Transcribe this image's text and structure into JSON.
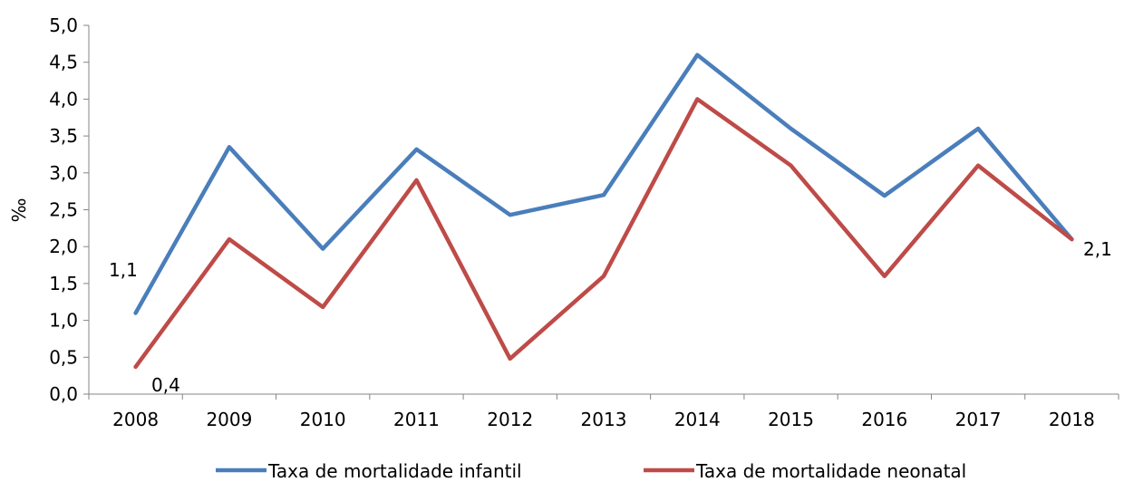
{
  "chart_data": {
    "type": "line",
    "title": "",
    "xlabel": "",
    "ylabel": "‰",
    "ylim": [
      0,
      5
    ],
    "ytick_labels": [
      "0,0",
      "0,5",
      "1,0",
      "1,5",
      "2,0",
      "2,5",
      "3,0",
      "3,5",
      "4,0",
      "4,5",
      "5,0"
    ],
    "categories": [
      "2008",
      "2009",
      "2010",
      "2011",
      "2012",
      "2013",
      "2014",
      "2015",
      "2016",
      "2017",
      "2018"
    ],
    "series": [
      {
        "name": "Taxa de mortalidade infantil",
        "color": "#4a7ebb",
        "values": [
          1.1,
          3.35,
          1.97,
          3.32,
          2.43,
          2.7,
          4.6,
          3.6,
          2.69,
          3.6,
          2.1
        ]
      },
      {
        "name": "Taxa de mortalidade neonatal",
        "color": "#be4b48",
        "values": [
          0.37,
          2.1,
          1.18,
          2.9,
          0.48,
          1.6,
          4.0,
          3.1,
          1.6,
          3.1,
          2.1
        ]
      }
    ],
    "annotations": [
      {
        "text": "1,1"
      },
      {
        "text": "0,4"
      },
      {
        "text": "2,1"
      }
    ],
    "legend_position": "bottom",
    "grid": false
  }
}
